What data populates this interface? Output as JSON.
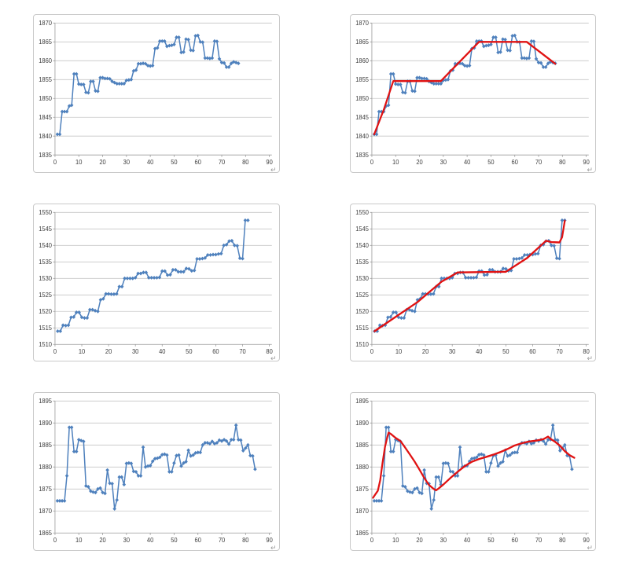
{
  "decor": {
    "corner_mark": "↵"
  },
  "palette": {
    "grid": "#c6c6c6",
    "axis": "#9b9b9b",
    "tick_label": "#404040"
  },
  "chart_data": [
    {
      "id": "top-left",
      "type": "line",
      "x_start": 1,
      "x_step": 1,
      "xlim": [
        0,
        90
      ],
      "ylim": [
        1835,
        1870
      ],
      "xtick_step": 10,
      "ytick_step": 5,
      "grid": true,
      "marker": "diamond",
      "series_color": "#4f81bd",
      "trend_color": "#e01212",
      "y_values": [
        1840.5,
        1840.5,
        1846.5,
        1846.5,
        1846.5,
        1848,
        1848.2,
        1856.5,
        1856.5,
        1853.8,
        1853.7,
        1853.7,
        1851.6,
        1851.5,
        1854.5,
        1854.5,
        1852,
        1851.9,
        1855.5,
        1855.5,
        1855.3,
        1855.3,
        1855.2,
        1854.5,
        1854.2,
        1853.9,
        1853.9,
        1853.9,
        1853.9,
        1854.8,
        1854.9,
        1855,
        1857.3,
        1857.5,
        1859.2,
        1859.2,
        1859.3,
        1859.2,
        1858.7,
        1858.6,
        1858.7,
        1863.2,
        1863.4,
        1865.2,
        1865.2,
        1865.2,
        1863.8,
        1864,
        1864.1,
        1864.3,
        1866.2,
        1866.2,
        1862.2,
        1862.3,
        1865.7,
        1865.6,
        1862.8,
        1862.7,
        1866.6,
        1866.7,
        1865,
        1864.9,
        1860.7,
        1860.7,
        1860.6,
        1860.7,
        1865.2,
        1865.1,
        1860.5,
        1859.5,
        1859.4,
        1858.3,
        1858.3,
        1859.3,
        1859.7,
        1859.5,
        1859.3
      ],
      "trend_line": null
    },
    {
      "id": "top-right",
      "type": "line",
      "x_start": 1,
      "x_step": 1,
      "xlim": [
        0,
        90
      ],
      "ylim": [
        1835,
        1870
      ],
      "xtick_step": 10,
      "ytick_step": 5,
      "grid": true,
      "marker": "diamond",
      "series_color": "#4f81bd",
      "trend_color": "#e01212",
      "y_values": [
        1840.5,
        1840.5,
        1846.5,
        1846.5,
        1846.5,
        1848,
        1848.2,
        1856.5,
        1856.5,
        1853.8,
        1853.7,
        1853.7,
        1851.6,
        1851.5,
        1854.5,
        1854.5,
        1852,
        1851.9,
        1855.5,
        1855.5,
        1855.3,
        1855.3,
        1855.2,
        1854.5,
        1854.2,
        1853.9,
        1853.9,
        1853.9,
        1853.9,
        1854.8,
        1854.9,
        1855,
        1857.3,
        1857.5,
        1859.2,
        1859.2,
        1859.3,
        1859.2,
        1858.7,
        1858.6,
        1858.7,
        1863.2,
        1863.4,
        1865.2,
        1865.2,
        1865.2,
        1863.8,
        1864,
        1864.1,
        1864.3,
        1866.2,
        1866.2,
        1862.2,
        1862.3,
        1865.7,
        1865.6,
        1862.8,
        1862.7,
        1866.6,
        1866.7,
        1865,
        1864.9,
        1860.7,
        1860.7,
        1860.6,
        1860.7,
        1865.2,
        1865.1,
        1860.5,
        1859.5,
        1859.4,
        1858.3,
        1858.3,
        1859.3,
        1859.7,
        1859.5,
        1859.3
      ],
      "trend_line": [
        [
          1,
          1840.5
        ],
        [
          5,
          1847
        ],
        [
          9,
          1854.6
        ],
        [
          29,
          1854.6
        ],
        [
          45,
          1865
        ],
        [
          65,
          1865
        ],
        [
          77,
          1859.2
        ]
      ]
    },
    {
      "id": "middle-left",
      "type": "line",
      "x_start": 1,
      "x_step": 1,
      "xlim": [
        0,
        80
      ],
      "ylim": [
        1510,
        1550
      ],
      "xtick_step": 10,
      "ytick_step": 5,
      "grid": true,
      "marker": "diamond",
      "series_color": "#4f81bd",
      "trend_color": "#e01212",
      "y_values": [
        1514,
        1514,
        1515.8,
        1515.7,
        1515.8,
        1518.2,
        1518.3,
        1519.7,
        1519.7,
        1518.2,
        1518,
        1518,
        1520.5,
        1520.5,
        1520.2,
        1520,
        1523.5,
        1523.8,
        1525.3,
        1525.3,
        1525.2,
        1525.2,
        1525.3,
        1527.5,
        1527.5,
        1530,
        1530,
        1530,
        1530,
        1530.2,
        1531.5,
        1531.5,
        1531.8,
        1531.8,
        1530.2,
        1530.2,
        1530.2,
        1530.2,
        1530.3,
        1532.2,
        1532.2,
        1531,
        1531.1,
        1532.6,
        1532.6,
        1532,
        1532,
        1532,
        1533,
        1532.9,
        1532.3,
        1532.4,
        1535.9,
        1535.9,
        1536,
        1536.2,
        1537.1,
        1537.1,
        1537.2,
        1537.2,
        1537.4,
        1537.5,
        1540,
        1540.2,
        1541.3,
        1541.4,
        1540,
        1539.9,
        1536.1,
        1536,
        1547.6,
        1547.6
      ],
      "trend_line": null
    },
    {
      "id": "middle-right",
      "type": "line",
      "x_start": 1,
      "x_step": 1,
      "xlim": [
        0,
        80
      ],
      "ylim": [
        1510,
        1550
      ],
      "xtick_step": 10,
      "ytick_step": 5,
      "grid": true,
      "marker": "diamond",
      "series_color": "#4f81bd",
      "trend_color": "#e01212",
      "y_values": [
        1514,
        1514,
        1515.8,
        1515.7,
        1515.8,
        1518.2,
        1518.3,
        1519.7,
        1519.7,
        1518.2,
        1518,
        1518,
        1520.5,
        1520.5,
        1520.2,
        1520,
        1523.5,
        1523.8,
        1525.3,
        1525.3,
        1525.2,
        1525.2,
        1525.3,
        1527.5,
        1527.5,
        1530,
        1530,
        1530,
        1530,
        1530.2,
        1531.5,
        1531.5,
        1531.8,
        1531.8,
        1530.2,
        1530.2,
        1530.2,
        1530.2,
        1530.3,
        1532.2,
        1532.2,
        1531,
        1531.1,
        1532.6,
        1532.6,
        1532,
        1532,
        1532,
        1533,
        1532.9,
        1532.3,
        1532.4,
        1535.9,
        1535.9,
        1536,
        1536.2,
        1537.1,
        1537.1,
        1537.2,
        1537.2,
        1537.4,
        1537.5,
        1540,
        1540.2,
        1541.3,
        1541.4,
        1540,
        1539.9,
        1536.1,
        1536,
        1547.6,
        1547.6
      ],
      "trend_line": [
        [
          1,
          1514
        ],
        [
          17,
          1522.8
        ],
        [
          26,
          1529
        ],
        [
          32,
          1531.8
        ],
        [
          50,
          1532
        ],
        [
          58,
          1536.2
        ],
        [
          65,
          1541.4
        ],
        [
          67,
          1541
        ],
        [
          70,
          1540.9
        ],
        [
          71,
          1542.5
        ],
        [
          72,
          1547.5
        ]
      ]
    },
    {
      "id": "bottom-left",
      "type": "line",
      "x_start": 1,
      "x_step": 1,
      "xlim": [
        0,
        90
      ],
      "ylim": [
        1865,
        1895
      ],
      "xtick_step": 10,
      "ytick_step": 5,
      "grid": true,
      "marker": "diamond",
      "series_color": "#4f81bd",
      "trend_color": "#e01212",
      "y_values": [
        1872.3,
        1872.3,
        1872.3,
        1872.3,
        1878,
        1889,
        1889,
        1883.5,
        1883.5,
        1886.2,
        1886,
        1885.8,
        1875.7,
        1875.5,
        1874.5,
        1874.3,
        1874.2,
        1875,
        1875.2,
        1874.2,
        1874,
        1879.3,
        1876.3,
        1876.2,
        1870.5,
        1872.5,
        1877.7,
        1877.7,
        1876,
        1880.8,
        1880.9,
        1880.8,
        1879,
        1878.9,
        1878,
        1878,
        1884.5,
        1880,
        1880.2,
        1880.3,
        1881.3,
        1881.9,
        1882,
        1882.2,
        1882.8,
        1882.9,
        1882.7,
        1878.9,
        1878.9,
        1880.9,
        1882.6,
        1882.7,
        1880.2,
        1880.9,
        1881.2,
        1883.8,
        1882.5,
        1882.7,
        1883.2,
        1883.3,
        1883.3,
        1885,
        1885.5,
        1885.5,
        1885.3,
        1885.8,
        1885.3,
        1885.5,
        1886.1,
        1885.9,
        1886.2,
        1885.9,
        1885.2,
        1886.2,
        1886.2,
        1889.5,
        1886.2,
        1886.1,
        1883.7,
        1884.3,
        1885,
        1882.6,
        1882.5,
        1879.5
      ],
      "trend_line": null
    },
    {
      "id": "bottom-right",
      "type": "line",
      "x_start": 1,
      "x_step": 1,
      "xlim": [
        0,
        90
      ],
      "ylim": [
        1865,
        1895
      ],
      "xtick_step": 10,
      "ytick_step": 5,
      "grid": true,
      "marker": "diamond",
      "series_color": "#4f81bd",
      "trend_color": "#e01212",
      "y_values": [
        1872.3,
        1872.3,
        1872.3,
        1872.3,
        1878,
        1889,
        1889,
        1883.5,
        1883.5,
        1886.2,
        1886,
        1885.8,
        1875.7,
        1875.5,
        1874.5,
        1874.3,
        1874.2,
        1875,
        1875.2,
        1874.2,
        1874,
        1879.3,
        1876.3,
        1876.2,
        1870.5,
        1872.5,
        1877.7,
        1877.7,
        1876,
        1880.8,
        1880.9,
        1880.8,
        1879,
        1878.9,
        1878,
        1878,
        1884.5,
        1880,
        1880.2,
        1880.3,
        1881.3,
        1881.9,
        1882,
        1882.2,
        1882.8,
        1882.9,
        1882.7,
        1878.9,
        1878.9,
        1880.9,
        1882.6,
        1882.7,
        1880.2,
        1880.9,
        1881.2,
        1883.8,
        1882.5,
        1882.7,
        1883.2,
        1883.3,
        1883.3,
        1885,
        1885.5,
        1885.5,
        1885.3,
        1885.8,
        1885.3,
        1885.5,
        1886.1,
        1885.9,
        1886.2,
        1885.9,
        1885.2,
        1886.2,
        1886.2,
        1889.5,
        1886.2,
        1886.1,
        1883.7,
        1884.3,
        1885,
        1882.6,
        1882.5,
        1879.5
      ],
      "trend_line": [
        [
          0.5,
          1873
        ],
        [
          1.5,
          1873.8
        ],
        [
          2.5,
          1874.6
        ],
        [
          3.5,
          1877
        ],
        [
          4.5,
          1881
        ],
        [
          5.5,
          1884.5
        ],
        [
          6.5,
          1886.8
        ],
        [
          7,
          1887.8
        ],
        [
          8,
          1887.5
        ],
        [
          10,
          1886.6
        ],
        [
          12,
          1885.9
        ],
        [
          14,
          1884.4
        ],
        [
          16,
          1882.8
        ],
        [
          18,
          1881.2
        ],
        [
          20,
          1879.4
        ],
        [
          22,
          1877.5
        ],
        [
          24,
          1875.9
        ],
        [
          26,
          1875
        ],
        [
          27,
          1874.7
        ],
        [
          28,
          1875.1
        ],
        [
          30,
          1876
        ],
        [
          33,
          1877.5
        ],
        [
          36,
          1878.9
        ],
        [
          39,
          1880.2
        ],
        [
          42,
          1881.2
        ],
        [
          45,
          1881.8
        ],
        [
          48,
          1882.3
        ],
        [
          51,
          1882.8
        ],
        [
          54,
          1883.4
        ],
        [
          57,
          1884.1
        ],
        [
          60,
          1884.9
        ],
        [
          63,
          1885.4
        ],
        [
          66,
          1885.8
        ],
        [
          69,
          1886
        ],
        [
          72,
          1886.3
        ],
        [
          74,
          1886.9
        ],
        [
          75,
          1886.4
        ],
        [
          77,
          1885.7
        ],
        [
          79,
          1884.8
        ],
        [
          81,
          1883.6
        ],
        [
          83,
          1882.7
        ],
        [
          85,
          1882.1
        ]
      ]
    }
  ]
}
